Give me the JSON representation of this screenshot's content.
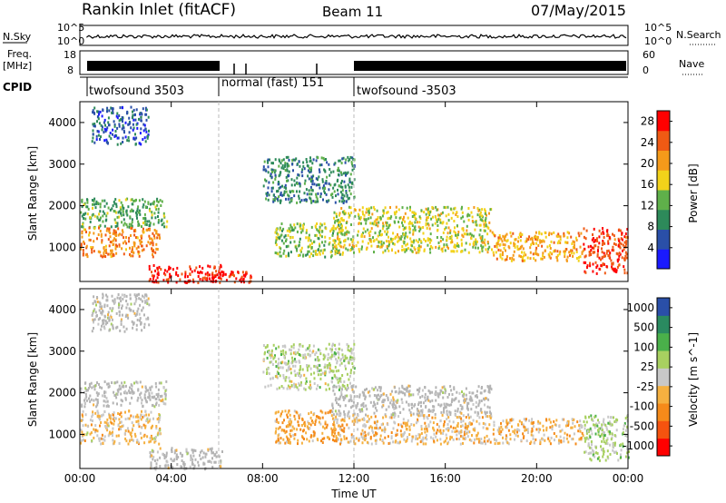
{
  "header": {
    "station": "Rankin Inlet (fitACF)",
    "beam": "Beam 11",
    "date": "07/May/2015"
  },
  "strip_labels": {
    "nsky": "N.Sky",
    "nsearch": "N.Search",
    "freq_a": "Freq.",
    "freq_b": "[MHz]",
    "nave": "Nave",
    "cpid": "CPID"
  },
  "strip_ticks": {
    "nsky_left": [
      "10^5",
      "10^0"
    ],
    "nsearch_right": [
      "10^5",
      "10^0"
    ],
    "freq_left": [
      "18",
      "8"
    ],
    "nave_right": [
      "60",
      "0"
    ]
  },
  "cpid_modes": [
    {
      "label": "twofsound 3503"
    },
    {
      "label": "normal (fast) 151"
    },
    {
      "label": "twofsound -3503"
    }
  ],
  "colors": {
    "power_scale": [
      "#1a1aff",
      "#2a4fa8",
      "#2d8a5a",
      "#5fb04a",
      "#f2d21a",
      "#f59a1a",
      "#f05a14",
      "#ff0000"
    ],
    "velocity_scale": [
      "#ff0000",
      "#f5530f",
      "#f58a1a",
      "#f5b040",
      "#c8c8c8",
      "#a8d060",
      "#4ab04a",
      "#2a8a60",
      "#2a4fa8"
    ],
    "ground_scatter": "#b4b4b4"
  },
  "chart_data": [
    {
      "type": "heatmap",
      "title": "",
      "xlabel": "Time UT",
      "ylabel": "Slant Range [km]",
      "xlim": [
        "00:00",
        "24:00"
      ],
      "ylim": [
        180,
        4500
      ],
      "x_ticks": [
        "00:00",
        "04:00",
        "08:00",
        "12:00",
        "16:00",
        "20:00",
        "00:00"
      ],
      "y_ticks": [
        "1000",
        "2000",
        "3000",
        "4000"
      ],
      "colorbar": {
        "label": "Power [dB]",
        "ticks": [
          "4",
          "8",
          "12",
          "16",
          "20",
          "24",
          "28"
        ],
        "range": [
          0,
          30
        ]
      },
      "regions": [
        {
          "t": [
            0.0,
            3.8
          ],
          "r": [
            1500,
            2200
          ],
          "v": 12
        },
        {
          "t": [
            0.0,
            3.5
          ],
          "r": [
            800,
            1500
          ],
          "v": 22
        },
        {
          "t": [
            0.5,
            3.0
          ],
          "r": [
            3500,
            4400
          ],
          "v": 6
        },
        {
          "t": [
            3.0,
            6.2
          ],
          "r": [
            180,
            600
          ],
          "v": 28
        },
        {
          "t": [
            5.0,
            7.5
          ],
          "r": [
            180,
            450
          ],
          "v": 27
        },
        {
          "t": [
            8.0,
            12.0
          ],
          "r": [
            2100,
            3200
          ],
          "v": 9
        },
        {
          "t": [
            8.5,
            11.5
          ],
          "r": [
            800,
            1600
          ],
          "v": 14
        },
        {
          "t": [
            11.0,
            18.0
          ],
          "r": [
            900,
            2000
          ],
          "v": 16
        },
        {
          "t": [
            18.0,
            22.0
          ],
          "r": [
            700,
            1400
          ],
          "v": 20
        },
        {
          "t": [
            22.0,
            24.0
          ],
          "r": [
            400,
            1500
          ],
          "v": 26
        }
      ]
    },
    {
      "type": "heatmap",
      "title": "",
      "xlabel": "Time UT",
      "ylabel": "Slant Range [km]",
      "xlim": [
        "00:00",
        "24:00"
      ],
      "ylim": [
        180,
        4500
      ],
      "x_ticks": [
        "00:00",
        "04:00",
        "08:00",
        "12:00",
        "16:00",
        "20:00",
        "00:00"
      ],
      "y_ticks": [
        "1000",
        "2000",
        "3000",
        "4000"
      ],
      "colorbar": {
        "label": "Velocity [m s^-1]",
        "ticks": [
          "1000",
          "500",
          "100",
          "25",
          "-25",
          "-100",
          "-500",
          "-1000"
        ],
        "range": [
          -1000,
          1000
        ]
      },
      "regions": [
        {
          "t": [
            0.0,
            3.8
          ],
          "r": [
            1700,
            2300
          ],
          "v": 0,
          "ground": true
        },
        {
          "t": [
            0.0,
            3.5
          ],
          "r": [
            800,
            1600
          ],
          "v": -120
        },
        {
          "t": [
            0.5,
            3.0
          ],
          "r": [
            3500,
            4400
          ],
          "v": 0,
          "ground": true
        },
        {
          "t": [
            3.0,
            6.2
          ],
          "r": [
            180,
            700
          ],
          "v": 0,
          "ground": true
        },
        {
          "t": [
            8.0,
            12.0
          ],
          "r": [
            2100,
            3200
          ],
          "v": 120
        },
        {
          "t": [
            8.5,
            11.5
          ],
          "r": [
            800,
            1600
          ],
          "v": -300
        },
        {
          "t": [
            11.0,
            18.0
          ],
          "r": [
            1500,
            2200
          ],
          "v": 0,
          "ground": true
        },
        {
          "t": [
            11.0,
            18.0
          ],
          "r": [
            800,
            1500
          ],
          "v": -150
        },
        {
          "t": [
            18.0,
            22.0
          ],
          "r": [
            800,
            1400
          ],
          "v": -200
        },
        {
          "t": [
            22.0,
            24.0
          ],
          "r": [
            400,
            1500
          ],
          "v": 150
        }
      ]
    }
  ]
}
